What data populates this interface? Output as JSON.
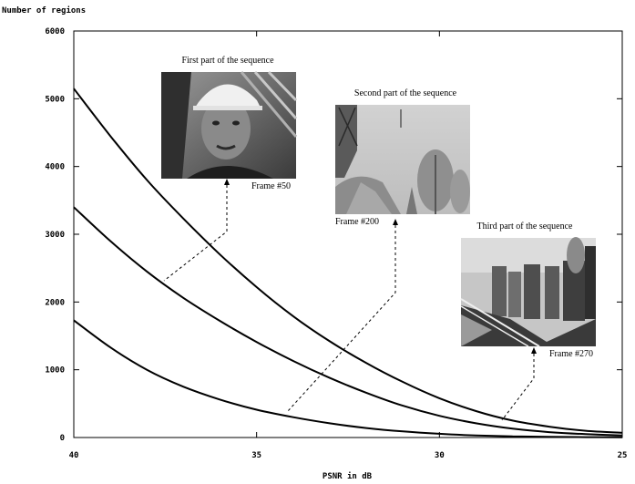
{
  "chart_data": {
    "type": "line",
    "title": "",
    "xlabel": "PSNR in dB",
    "ylabel": "Number of regions",
    "xlim": [
      40,
      25
    ],
    "ylim": [
      0,
      6000
    ],
    "x_ticks": [
      "40",
      "35",
      "30",
      "25"
    ],
    "x_tick_values": [
      40,
      35,
      30,
      25
    ],
    "y_ticks": [
      "0",
      "1000",
      "2000",
      "3000",
      "4000",
      "5000",
      "6000"
    ],
    "y_tick_values": [
      0,
      1000,
      2000,
      3000,
      4000,
      5000,
      6000
    ],
    "grid": false,
    "series": [
      {
        "x": [
          40,
          39,
          38,
          37,
          36,
          35,
          34,
          33,
          32,
          31,
          30,
          29,
          28,
          27,
          26,
          25
        ],
        "values": [
          5150,
          4450,
          3800,
          3230,
          2700,
          2220,
          1790,
          1420,
          1100,
          820,
          580,
          390,
          250,
          160,
          100,
          70
        ]
      },
      {
        "x": [
          40,
          39,
          38,
          37,
          36,
          35,
          34,
          33,
          32,
          31,
          30,
          29,
          28,
          27,
          26,
          25
        ],
        "values": [
          3400,
          2900,
          2450,
          2060,
          1720,
          1410,
          1130,
          880,
          660,
          470,
          320,
          210,
          130,
          80,
          50,
          30
        ]
      },
      {
        "x": [
          40,
          39,
          38,
          37,
          36,
          35,
          34,
          33,
          32,
          31,
          30,
          29,
          28,
          27,
          26,
          25
        ],
        "values": [
          1730,
          1330,
          1000,
          750,
          560,
          410,
          300,
          210,
          140,
          90,
          55,
          30,
          18,
          10,
          6,
          4
        ]
      }
    ],
    "annotations": [
      {
        "id": "first",
        "title": "First part of the sequence",
        "frame_label": "Frame #50",
        "pointer_to": {
          "x": 37.5,
          "y": 2300
        }
      },
      {
        "id": "second",
        "title": "Second part of the sequence",
        "frame_label": "Frame #200",
        "pointer_to": {
          "x": 34.1,
          "y": 370
        }
      },
      {
        "id": "third",
        "title": "Third part of the sequence",
        "frame_label": "Frame #270",
        "pointer_to": {
          "x": 28.9,
          "y": 260
        }
      }
    ]
  }
}
